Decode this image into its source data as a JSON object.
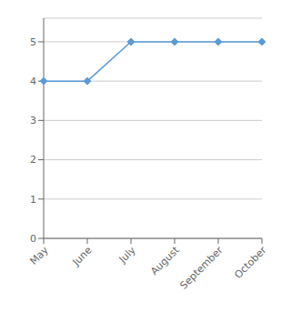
{
  "chart_data": {
    "type": "line",
    "categories": [
      "May",
      "June",
      "July",
      "August",
      "September",
      "October"
    ],
    "values": [
      4,
      4,
      5,
      5,
      5,
      5
    ],
    "color": "#5b9bd5",
    "marker": "diamond",
    "ylim": [
      0,
      5.6
    ],
    "yticks": [
      0,
      1,
      2,
      3,
      4,
      5
    ],
    "grid": true
  }
}
